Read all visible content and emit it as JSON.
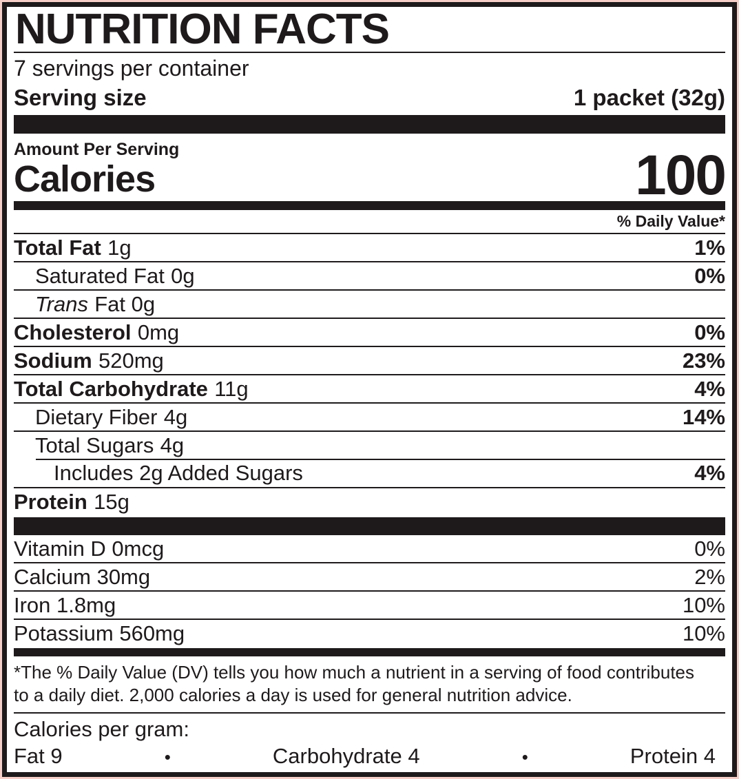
{
  "label": {
    "title": "NUTRITION FACTS",
    "servings_per_container": "7 servings per container",
    "serving_size_label": "Serving size",
    "serving_size_value": "1 packet (32g)",
    "amount_per_serving": "Amount Per Serving",
    "calories_label": "Calories",
    "calories_value": "100",
    "daily_value_header": "% Daily Value*",
    "nutrients": [
      {
        "name": "Total Fat",
        "amount": "1g",
        "dv": "1%"
      },
      {
        "name": "Saturated Fat",
        "amount": "0g",
        "dv": "0%"
      },
      {
        "name": "Trans",
        "amount": "Fat 0g",
        "dv": ""
      },
      {
        "name": "Cholesterol",
        "amount": "0mg",
        "dv": "0%"
      },
      {
        "name": "Sodium",
        "amount": "520mg",
        "dv": "23%"
      },
      {
        "name": "Total Carbohydrate",
        "amount": "11g",
        "dv": "4%"
      },
      {
        "name": "Dietary Fiber",
        "amount": "4g",
        "dv": "14%"
      },
      {
        "name": "Total Sugars",
        "amount": "4g",
        "dv": ""
      },
      {
        "name": "Includes 2g Added Sugars",
        "amount": "",
        "dv": "4%"
      },
      {
        "name": "Protein",
        "amount": "15g",
        "dv": ""
      }
    ],
    "vitamins": [
      {
        "name": "Vitamin D 0mcg",
        "dv": "0%"
      },
      {
        "name": "Calcium 30mg",
        "dv": "2%"
      },
      {
        "name": "Iron 1.8mg",
        "dv": "10%"
      },
      {
        "name": "Potassium 560mg",
        "dv": "10%"
      }
    ],
    "footnote_line1": "*The % Daily Value (DV) tells you how much a nutrient in a serving of food contributes",
    "footnote_line2": "to a daily diet. 2,000 calories a day is used for general nutrition advice.",
    "calories_per_gram": {
      "label": "Calories per gram:",
      "bullet": "•",
      "items": [
        "Fat 9",
        "Carbohydrate 4",
        "Protein 4"
      ]
    }
  },
  "colors": {
    "background_pink": "#f6cfc8",
    "label_black": "#1e1a1b",
    "paper_white": "#ffffff"
  }
}
